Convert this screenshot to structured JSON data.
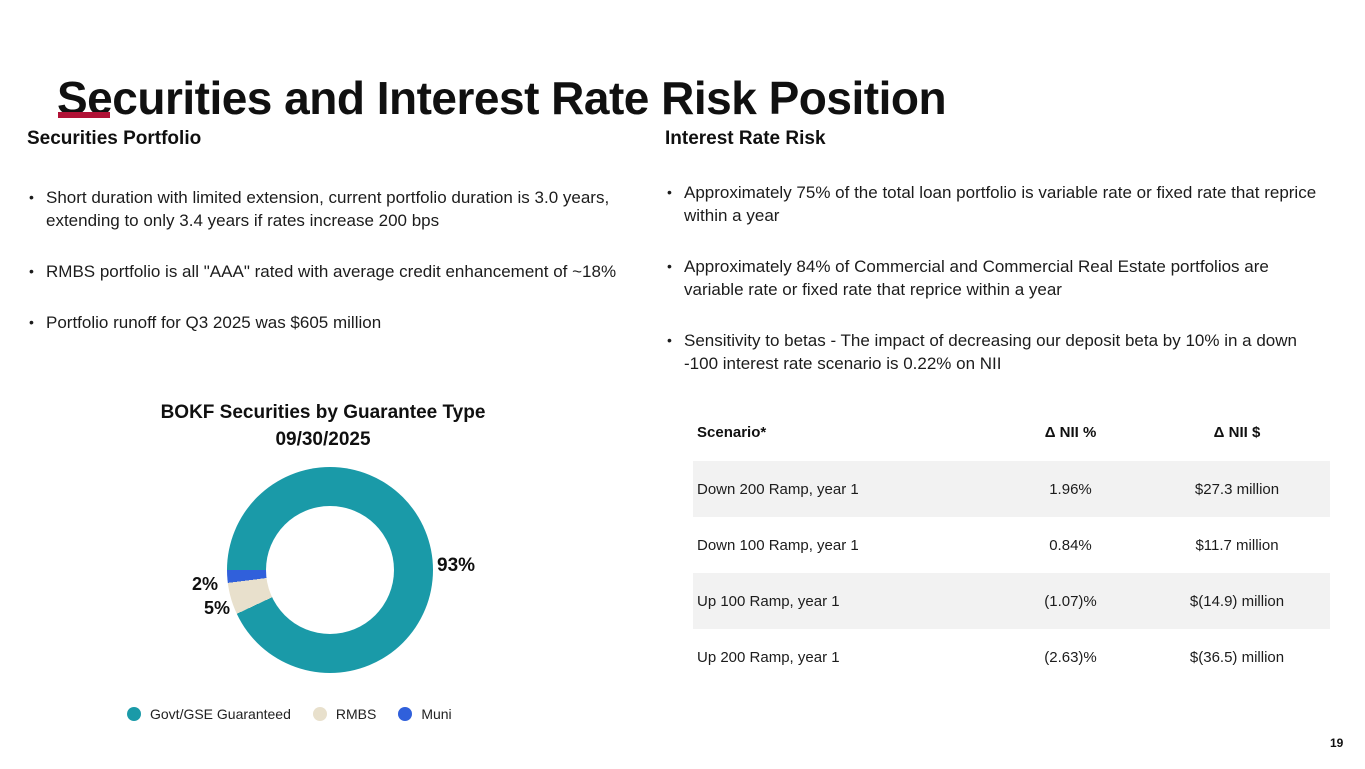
{
  "slide": {
    "title": "Securities and Interest Rate Risk Position",
    "accent_color": "#B01236",
    "page_number": "19"
  },
  "left_section": {
    "heading": "Securities Portfolio",
    "bullets": [
      "Short duration with limited extension, current portfolio duration is 3.0 years, extending to only 3.4 years if rates increase 200 bps",
      "RMBS portfolio is all \"AAA\" rated with average credit enhancement of  ~18%",
      "Portfolio runoff for Q3 2025 was $605 million"
    ]
  },
  "right_section": {
    "heading": "Interest Rate Risk",
    "bullets": [
      "Approximately 75% of the total loan portfolio is variable rate or fixed rate that reprice within a year",
      "Approximately 84% of Commercial and Commercial Real Estate portfolios are variable rate or fixed rate that reprice within a year",
      "Sensitivity to betas - The impact of decreasing our deposit beta by 10% in a down -100 interest rate scenario is 0.22% on NII"
    ]
  },
  "chart_data": {
    "type": "pie",
    "donut": true,
    "title": "BOKF Securities by Guarantee Type",
    "subtitle": "09/30/2025",
    "categories": [
      "Govt/GSE Guaranteed",
      "RMBS",
      "Muni"
    ],
    "values": [
      93,
      5,
      2
    ],
    "labels": [
      "93%",
      "5%",
      "2%"
    ],
    "colors": [
      "#1A9AA8",
      "#E8E0CC",
      "#3060DB"
    ],
    "start_angle_deg": 270,
    "legend_position": "bottom"
  },
  "table": {
    "headers": [
      "Scenario*",
      "Δ NII %",
      "Δ NII $"
    ],
    "rows": [
      [
        "Down 200 Ramp, year 1",
        "1.96%",
        "$27.3 million"
      ],
      [
        "Down 100 Ramp, year 1",
        "0.84%",
        "$11.7 million"
      ],
      [
        "Up 100 Ramp, year 1",
        "(1.07)%",
        "$(14.9) million"
      ],
      [
        "Up 200 Ramp, year 1",
        "(2.63)%",
        "$(36.5) million"
      ]
    ]
  }
}
